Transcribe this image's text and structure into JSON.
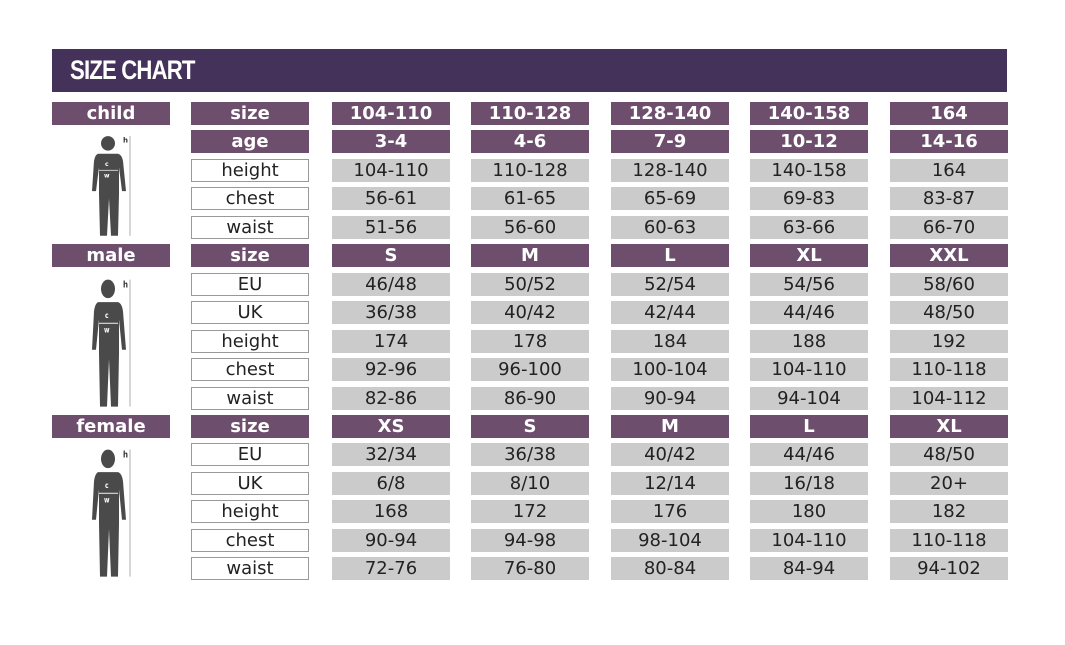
{
  "title": "SIZE CHART",
  "colors": {
    "header": "#45325a",
    "label": "#6d4e6d",
    "value": "#cbcbcb"
  },
  "sections": [
    {
      "name": "child",
      "icon": "child-figure-icon",
      "rows": [
        {
          "label": "size",
          "values": [
            "104-110",
            "110-128",
            "128-140",
            "140-158",
            "164"
          ],
          "head": true
        },
        {
          "label": "age",
          "values": [
            "3-4",
            "4-6",
            "7-9",
            "10-12",
            "14-16"
          ],
          "head": true
        },
        {
          "label": "height",
          "values": [
            "104-110",
            "110-128",
            "128-140",
            "140-158",
            "164"
          ]
        },
        {
          "label": "chest",
          "values": [
            "56-61",
            "61-65",
            "65-69",
            "69-83",
            "83-87"
          ]
        },
        {
          "label": "waist",
          "values": [
            "51-56",
            "56-60",
            "60-63",
            "63-66",
            "66-70"
          ]
        }
      ]
    },
    {
      "name": "male",
      "icon": "male-figure-icon",
      "rows": [
        {
          "label": "size",
          "values": [
            "S",
            "M",
            "L",
            "XL",
            "XXL"
          ],
          "head": true
        },
        {
          "label": "EU",
          "values": [
            "46/48",
            "50/52",
            "52/54",
            "54/56",
            "58/60"
          ]
        },
        {
          "label": "UK",
          "values": [
            "36/38",
            "40/42",
            "42/44",
            "44/46",
            "48/50"
          ]
        },
        {
          "label": "height",
          "values": [
            "174",
            "178",
            "184",
            "188",
            "192"
          ]
        },
        {
          "label": "chest",
          "values": [
            "92-96",
            "96-100",
            "100-104",
            "104-110",
            "110-118"
          ]
        },
        {
          "label": "waist",
          "values": [
            "82-86",
            "86-90",
            "90-94",
            "94-104",
            "104-112"
          ]
        }
      ]
    },
    {
      "name": "female",
      "icon": "female-figure-icon",
      "rows": [
        {
          "label": "size",
          "values": [
            "XS",
            "S",
            "M",
            "L",
            "XL"
          ],
          "head": true
        },
        {
          "label": "EU",
          "values": [
            "32/34",
            "36/38",
            "40/42",
            "44/46",
            "48/50"
          ]
        },
        {
          "label": "UK",
          "values": [
            "6/8",
            "8/10",
            "12/14",
            "16/18",
            "20+"
          ]
        },
        {
          "label": "height",
          "values": [
            "168",
            "172",
            "176",
            "180",
            "182"
          ]
        },
        {
          "label": "chest",
          "values": [
            "90-94",
            "94-98",
            "98-104",
            "104-110",
            "110-118"
          ]
        },
        {
          "label": "waist",
          "values": [
            "72-76",
            "76-80",
            "80-84",
            "84-94",
            "94-102"
          ]
        }
      ]
    }
  ],
  "figure_marks": {
    "h": "h",
    "c": "c",
    "w": "w"
  }
}
